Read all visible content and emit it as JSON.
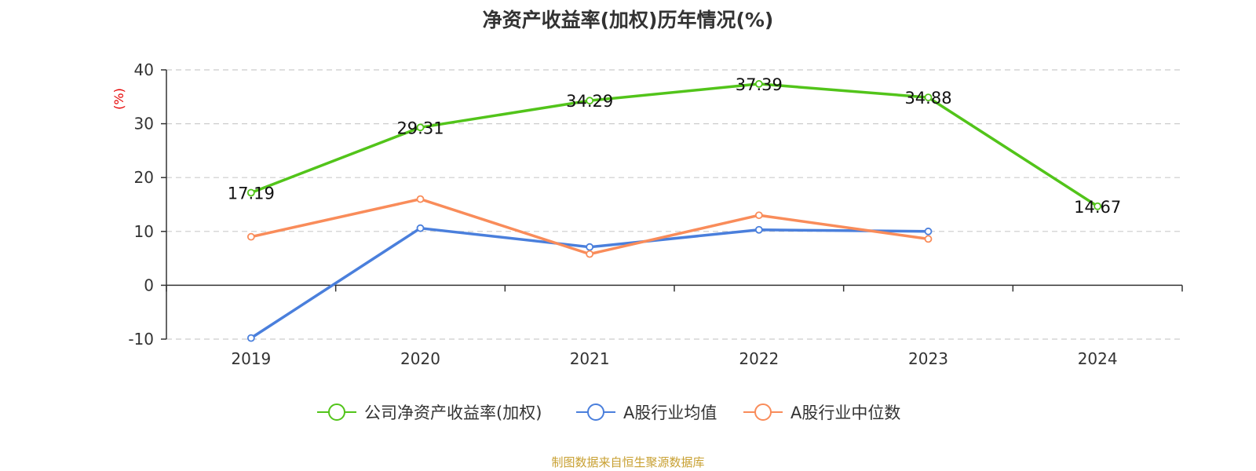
{
  "chart_data": {
    "type": "line",
    "title": "净资产收益率(加权)历年情况(%)",
    "ylabel": "(%)",
    "xlabel": "",
    "categories": [
      "2019",
      "2020",
      "2021",
      "2022",
      "2023",
      "2024"
    ],
    "ylim": [
      -10,
      40
    ],
    "yticks": [
      -10,
      0,
      10,
      20,
      30,
      40
    ],
    "grid": true,
    "legend_position": "bottom",
    "series": [
      {
        "name": "公司净资产收益率(加权)",
        "color": "#52c41a",
        "values": [
          17.19,
          29.31,
          34.29,
          37.39,
          34.88,
          14.67
        ],
        "labels": [
          "17.19",
          "29.31",
          "34.29",
          "37.39",
          "34.88",
          "14.67"
        ]
      },
      {
        "name": "A股行业均值",
        "color": "#4a7fdc",
        "values": [
          -9.8,
          10.6,
          7.1,
          10.3,
          10.0,
          null
        ]
      },
      {
        "name": "A股行业中位数",
        "color": "#f98c5a",
        "values": [
          9.0,
          16.0,
          5.8,
          13.0,
          8.6,
          null
        ]
      }
    ]
  },
  "source": "制图数据来自恒生聚源数据库"
}
